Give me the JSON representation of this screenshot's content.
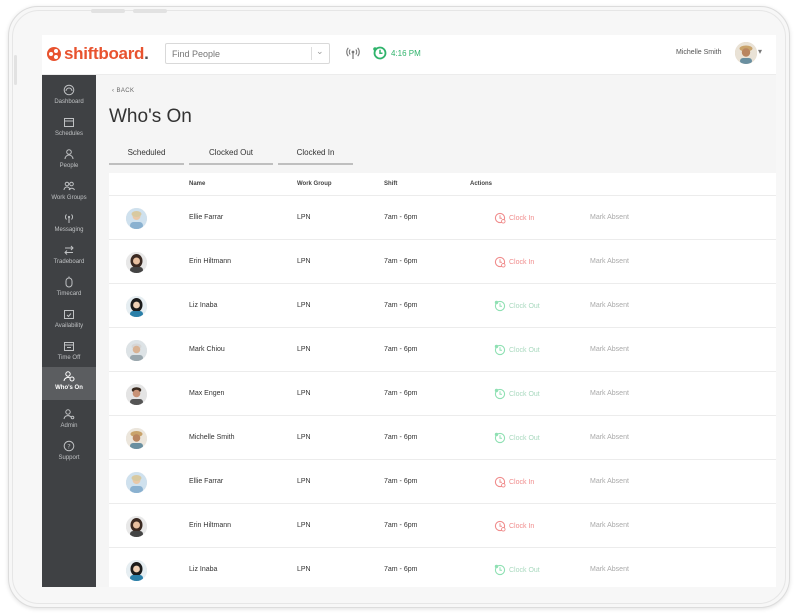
{
  "header": {
    "logo_text": "shiftboard",
    "logo_dot": ".",
    "search_placeholder": "Find People",
    "clock_time": "4:16 PM",
    "user_name": "Michelle Smith"
  },
  "sidebar": {
    "items": [
      {
        "label": "Dashboard",
        "icon": "dashboard-icon"
      },
      {
        "label": "Schedules",
        "icon": "calendar-icon"
      },
      {
        "label": "People",
        "icon": "person-icon"
      },
      {
        "label": "Work Groups",
        "icon": "group-icon"
      },
      {
        "label": "Messaging",
        "icon": "broadcast-icon"
      },
      {
        "label": "Tradeboard",
        "icon": "swap-icon"
      },
      {
        "label": "Timecard",
        "icon": "stopwatch-icon"
      },
      {
        "label": "Availability",
        "icon": "calendar-check-icon"
      },
      {
        "label": "Time Off",
        "icon": "calendar-off-icon"
      },
      {
        "label": "Who's On",
        "icon": "person-clock-icon",
        "active": true
      },
      {
        "label": "Admin",
        "icon": "admin-icon"
      },
      {
        "label": "Support",
        "icon": "help-icon"
      }
    ]
  },
  "main": {
    "back_label": "BACK",
    "title": "Who's On",
    "tabs": [
      {
        "label": "Scheduled"
      },
      {
        "label": "Clocked Out"
      },
      {
        "label": "Clocked In"
      }
    ],
    "columns": {
      "name": "Name",
      "work_group": "Work Group",
      "shift": "Shift",
      "actions": "Actions"
    },
    "rows": [
      {
        "name": "Ellie Farrar",
        "work_group": "LPN",
        "shift": "7am - 6pm",
        "action": "Clock In",
        "absent": "Mark Absent"
      },
      {
        "name": "Erin Hiltmann",
        "work_group": "LPN",
        "shift": "7am - 6pm",
        "action": "Clock In",
        "absent": "Mark Absent"
      },
      {
        "name": "Liz Inaba",
        "work_group": "LPN",
        "shift": "7am - 6pm",
        "action": "Clock Out",
        "absent": "Mark Absent"
      },
      {
        "name": "Mark Chiou",
        "work_group": "LPN",
        "shift": "7am - 6pm",
        "action": "Clock Out",
        "absent": "Mark Absent"
      },
      {
        "name": "Max Engen",
        "work_group": "LPN",
        "shift": "7am - 6pm",
        "action": "Clock Out",
        "absent": "Mark Absent"
      },
      {
        "name": "Michelle Smith",
        "work_group": "LPN",
        "shift": "7am - 6pm",
        "action": "Clock Out",
        "absent": "Mark Absent"
      },
      {
        "name": "Ellie Farrar",
        "work_group": "LPN",
        "shift": "7am - 6pm",
        "action": "Clock In",
        "absent": "Mark Absent"
      },
      {
        "name": "Erin Hiltmann",
        "work_group": "LPN",
        "shift": "7am - 6pm",
        "action": "Clock In",
        "absent": "Mark Absent"
      },
      {
        "name": "Liz Inaba",
        "work_group": "LPN",
        "shift": "7am - 6pm",
        "action": "Clock Out",
        "absent": "Mark Absent"
      }
    ]
  },
  "colors": {
    "brand": "#e8532f",
    "clock_in": "#f08c8c",
    "clock_out": "#8fe0b3",
    "live_clock": "#2fb36b",
    "sidebar": "#3f4144"
  }
}
